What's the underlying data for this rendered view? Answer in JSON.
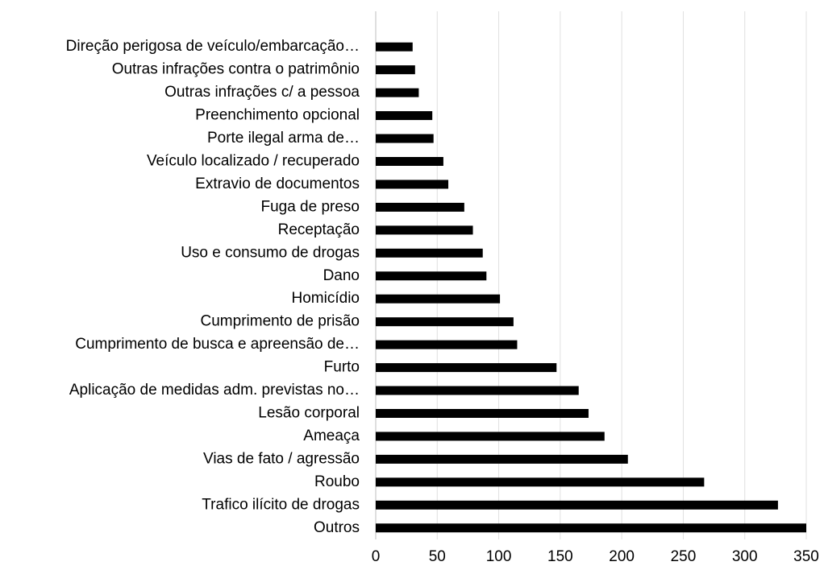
{
  "chart_data": {
    "type": "bar",
    "orientation": "horizontal",
    "categories": [
      "Direção perigosa de veículo/embarcação…",
      "Outras infrações contra o patrimônio",
      "Outras infrações c/ a pessoa",
      "Preenchimento opcional",
      "Porte ilegal arma de…",
      "Veículo localizado / recuperado",
      "Extravio de documentos",
      "Fuga de preso",
      "Receptação",
      "Uso e consumo de drogas",
      "Dano",
      "Homicídio",
      "Cumprimento de prisão",
      "Cumprimento de busca e apreensão de…",
      "Furto",
      "Aplicação de medidas adm. previstas no…",
      "Lesão corporal",
      "Ameaça",
      "Vias de fato / agressão",
      "Roubo",
      "Trafico ilícito de drogas",
      "Outros"
    ],
    "values": [
      30,
      32,
      35,
      46,
      47,
      55,
      59,
      72,
      79,
      87,
      90,
      101,
      112,
      115,
      147,
      165,
      173,
      186,
      205,
      267,
      327,
      350
    ],
    "color": "#000000",
    "xlim": [
      0,
      350
    ],
    "xticks": [
      0,
      50,
      100,
      150,
      200,
      250,
      300,
      350
    ],
    "grid": true
  }
}
